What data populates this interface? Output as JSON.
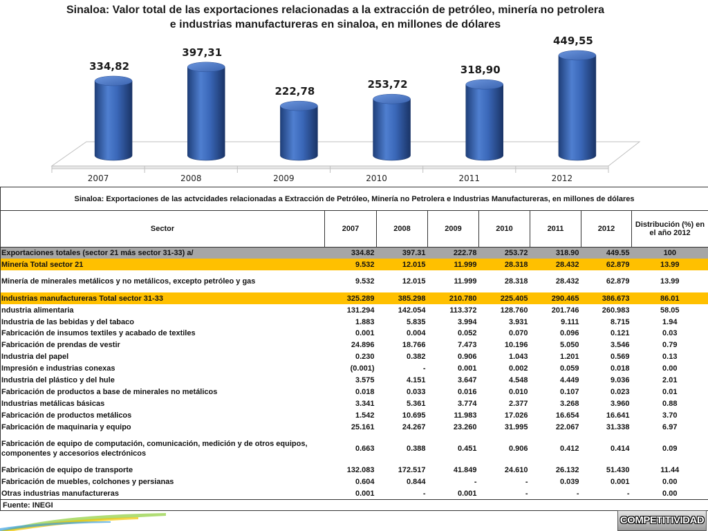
{
  "chart_data": {
    "type": "bar",
    "title": "Sinaloa: Valor  total de las exportaciones relacionadas a la extracción de petróleo, minería no petrolera e industrias manufactureras en sinaloa, en millones de dólares",
    "categories": [
      "2007",
      "2008",
      "2009",
      "2010",
      "2011",
      "2012"
    ],
    "values": [
      334.82,
      397.31,
      222.78,
      253.72,
      318.9,
      449.55
    ],
    "value_labels": [
      "334,82",
      "397,31",
      "222,78",
      "253,72",
      "318,90",
      "449,55"
    ],
    "color": "#4472c4"
  },
  "table": {
    "title": "Sinaloa: Exportaciones de las actvcidades relacionadas a Extracción de Petróleo, Minería no Petrolera e Industrias Manufactureras, en millones de dólares",
    "header": [
      "Sector",
      "2007",
      "2008",
      "2009",
      "2010",
      "2011",
      "2012",
      "Distribución (%) en el año 2012"
    ],
    "rows": [
      [
        "Exportaciones totales (sector 21 más sector 31-33) a/",
        "334.82",
        "397.31",
        "222.78",
        "253.72",
        "318.90",
        "449.55",
        "100"
      ],
      [
        "Minería Total sector 21",
        "9.532",
        "12.015",
        "11.999",
        "28.318",
        "28.432",
        "62.879",
        "13.99"
      ],
      [
        "Minería de minerales metálicos y no metálicos, excepto petróleo y gas",
        "9.532",
        "12.015",
        "11.999",
        "28.318",
        "28.432",
        "62.879",
        "13.99"
      ],
      [
        "Industrias manufactureras Total sector 31-33",
        "325.289",
        "385.298",
        "210.780",
        "225.405",
        "290.465",
        "386.673",
        "86.01"
      ],
      [
        "ndustria alimentaria",
        "131.294",
        "142.054",
        "113.372",
        "128.760",
        "201.746",
        "260.983",
        "58.05"
      ],
      [
        "Industria de las bebidas y del tabaco",
        "1.883",
        "5.835",
        "3.994",
        "3.931",
        "9.111",
        "8.715",
        "1.94"
      ],
      [
        "Fabricación de insumos textiles y acabado de textiles",
        "0.001",
        "0.004",
        "0.052",
        "0.070",
        "0.096",
        "0.121",
        "0.03"
      ],
      [
        "Fabricación de prendas de vestir",
        "24.896",
        "18.766",
        "7.473",
        "10.196",
        "5.050",
        "3.546",
        "0.79"
      ],
      [
        "Industria del papel",
        "0.230",
        "0.382",
        "0.906",
        "1.043",
        "1.201",
        "0.569",
        "0.13"
      ],
      [
        "Impresión e industrias conexas",
        "(0.001)",
        "-",
        "0.001",
        "0.002",
        "0.059",
        "0.018",
        "0.00"
      ],
      [
        "Industria del plástico y del hule",
        "3.575",
        "4.151",
        "3.647",
        "4.548",
        "4.449",
        "9.036",
        "2.01"
      ],
      [
        "Fabricación de productos a base de minerales no metálicos",
        "0.018",
        "0.033",
        "0.016",
        "0.010",
        "0.107",
        "0.023",
        "0.01"
      ],
      [
        "Industrias metálicas básicas",
        "3.341",
        "5.361",
        "3.774",
        "2.377",
        "3.268",
        "3.960",
        "0.88"
      ],
      [
        "Fabricación de productos metálicos",
        "1.542",
        "10.695",
        "11.983",
        "17.026",
        "16.654",
        "16.641",
        "3.70"
      ],
      [
        "Fabricación de maquinaria y equipo",
        "25.161",
        "24.267",
        "23.260",
        "31.995",
        "22.067",
        "31.338",
        "6.97"
      ],
      [
        "Fabricación de equipo de computación, comunicación,  medición  y de  otros equipos, componentes y accesorios electrónicos",
        "0.663",
        "0.388",
        "0.451",
        "0.906",
        "0.412",
        "0.414",
        "0.09"
      ],
      [
        "Fabricación de equipo de transporte",
        "132.083",
        "172.517",
        "41.849",
        "24.610",
        "26.132",
        "51.430",
        "11.44"
      ],
      [
        "Fabricación de muebles, colchones  y persianas",
        "0.604",
        "0.844",
        "-",
        "-",
        "0.039",
        "0.001",
        "0.00"
      ],
      [
        "Otras industrias manufactureras",
        "0.001",
        "-",
        "0.001",
        "-",
        "-",
        "-",
        "0.00"
      ]
    ],
    "source": "Fuente: INEGI"
  },
  "logo": "COMPETITIVIDAD"
}
